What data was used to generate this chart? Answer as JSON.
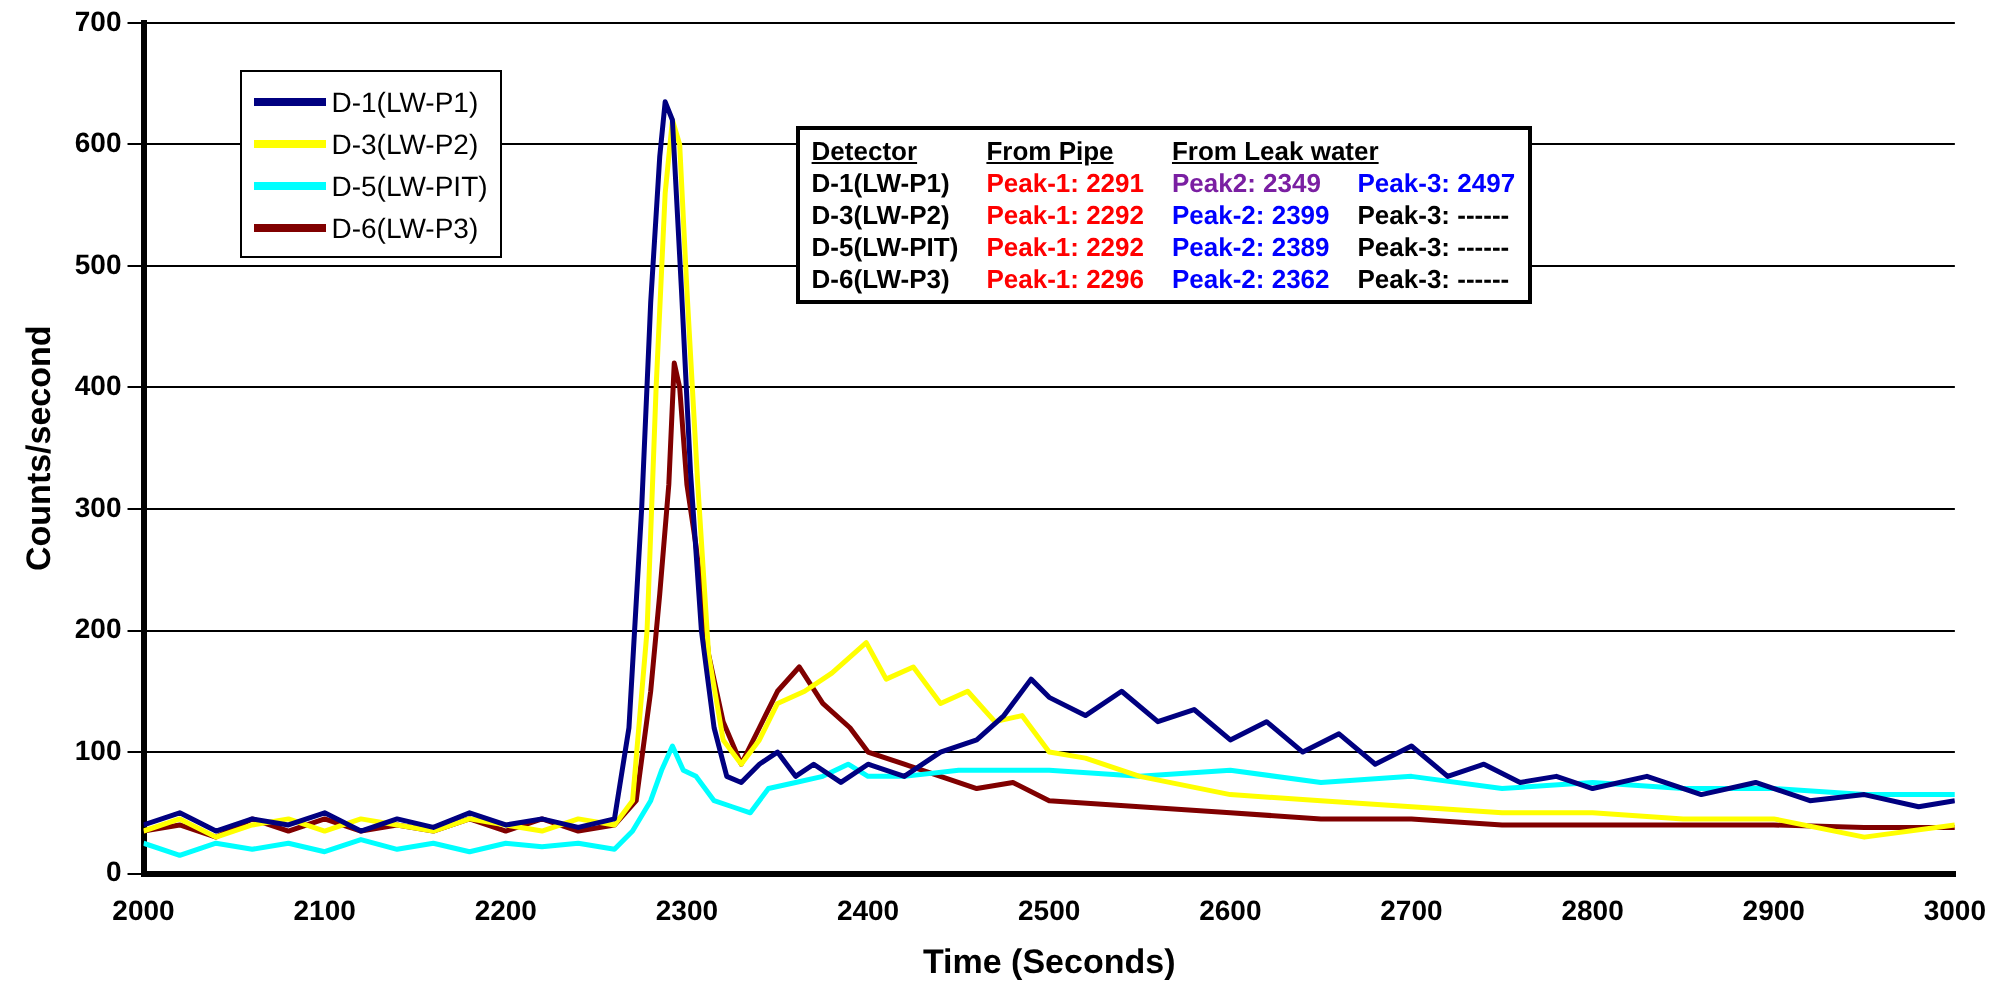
{
  "chart_data": {
    "type": "line",
    "xlabel": "Time (Seconds)",
    "ylabel": "Counts/second",
    "xlim": [
      2000,
      3000
    ],
    "xticks": [
      2000,
      2100,
      2200,
      2300,
      2400,
      2500,
      2600,
      2700,
      2800,
      2900,
      3000
    ],
    "ylim": [
      0,
      700
    ],
    "yticks": [
      0,
      100,
      200,
      300,
      400,
      500,
      600,
      700
    ],
    "grid": "y",
    "legend": "top left",
    "marker": "none",
    "line_style": "solid",
    "annotations": [
      "Detector",
      "From  Pipe",
      "From  Leak  water",
      "D-1(LW-P1)",
      "Peak-1:  2291",
      "Peak2:  2349",
      "Peak-3:  2497",
      "D-3(LW-P2)",
      "Peak-1:  2292",
      "Peak-2: 2399",
      "Peak-3:    ------",
      "D-5(LW-PIT)",
      "Peak-1:  2292",
      "Peak-2: 2389",
      "Peak-3:    ------",
      "D-6(LW-P3)",
      "Peak-1:  2296",
      "Peak-2: 2362",
      "Peak-3:    ------"
    ],
    "series": [
      {
        "name": "D-1(LW-P1)",
        "color": "#000080",
        "x": [
          2000,
          2020,
          2040,
          2060,
          2080,
          2100,
          2120,
          2140,
          2160,
          2180,
          2200,
          2220,
          2240,
          2260,
          2268,
          2275,
          2280,
          2285,
          2288,
          2292,
          2297,
          2302,
          2308,
          2315,
          2322,
          2330,
          2340,
          2350,
          2360,
          2370,
          2385,
          2400,
          2420,
          2440,
          2460,
          2475,
          2490,
          2500,
          2520,
          2540,
          2560,
          2580,
          2600,
          2620,
          2640,
          2660,
          2680,
          2700,
          2720,
          2740,
          2760,
          2780,
          2800,
          2830,
          2860,
          2890,
          2920,
          2950,
          2980,
          3000
        ],
        "values": [
          40,
          50,
          35,
          45,
          40,
          50,
          35,
          45,
          38,
          50,
          40,
          45,
          38,
          45,
          120,
          300,
          470,
          590,
          635,
          620,
          480,
          330,
          200,
          120,
          80,
          75,
          90,
          100,
          80,
          90,
          75,
          90,
          80,
          100,
          110,
          130,
          160,
          145,
          130,
          150,
          125,
          135,
          110,
          125,
          100,
          115,
          90,
          105,
          80,
          90,
          75,
          80,
          70,
          80,
          65,
          75,
          60,
          65,
          55,
          60
        ]
      },
      {
        "name": "D-3(LW-P2)",
        "color": "#ffff00",
        "x": [
          2000,
          2020,
          2040,
          2060,
          2080,
          2100,
          2120,
          2140,
          2160,
          2180,
          2200,
          2220,
          2240,
          2260,
          2270,
          2278,
          2283,
          2288,
          2292,
          2296,
          2300,
          2306,
          2312,
          2320,
          2330,
          2340,
          2350,
          2365,
          2380,
          2399,
          2410,
          2425,
          2440,
          2455,
          2470,
          2485,
          2500,
          2520,
          2550,
          2600,
          2650,
          2700,
          2750,
          2800,
          2850,
          2900,
          2950,
          3000
        ],
        "values": [
          35,
          45,
          30,
          40,
          45,
          35,
          45,
          40,
          35,
          45,
          40,
          35,
          45,
          40,
          60,
          200,
          400,
          560,
          620,
          600,
          480,
          320,
          180,
          110,
          90,
          110,
          140,
          150,
          165,
          190,
          160,
          170,
          140,
          150,
          125,
          130,
          100,
          95,
          80,
          65,
          60,
          55,
          50,
          50,
          45,
          45,
          30,
          40
        ]
      },
      {
        "name": "D-5(LW-PIT)",
        "color": "#00ffff",
        "x": [
          2000,
          2020,
          2040,
          2060,
          2080,
          2100,
          2120,
          2140,
          2160,
          2180,
          2200,
          2220,
          2240,
          2260,
          2270,
          2280,
          2286,
          2292,
          2298,
          2305,
          2315,
          2325,
          2335,
          2345,
          2360,
          2375,
          2389,
          2400,
          2420,
          2450,
          2500,
          2550,
          2600,
          2650,
          2700,
          2750,
          2800,
          2850,
          2900,
          2950,
          3000
        ],
        "values": [
          25,
          15,
          25,
          20,
          25,
          18,
          28,
          20,
          25,
          18,
          25,
          22,
          25,
          20,
          35,
          60,
          85,
          105,
          85,
          80,
          60,
          55,
          50,
          70,
          75,
          80,
          90,
          80,
          80,
          85,
          85,
          80,
          85,
          75,
          80,
          70,
          75,
          70,
          70,
          65,
          65
        ]
      },
      {
        "name": "D-6(LW-P3)",
        "color": "#800000",
        "x": [
          2000,
          2020,
          2040,
          2060,
          2080,
          2100,
          2120,
          2140,
          2160,
          2180,
          2200,
          2220,
          2240,
          2260,
          2272,
          2280,
          2285,
          2290,
          2293,
          2296,
          2300,
          2305,
          2312,
          2320,
          2330,
          2340,
          2350,
          2362,
          2375,
          2390,
          2400,
          2420,
          2440,
          2460,
          2480,
          2500,
          2550,
          2600,
          2650,
          2700,
          2750,
          2800,
          2850,
          2900,
          2950,
          3000
        ],
        "values": [
          35,
          40,
          30,
          45,
          35,
          45,
          35,
          40,
          35,
          45,
          35,
          45,
          35,
          40,
          60,
          150,
          230,
          320,
          420,
          400,
          320,
          270,
          180,
          125,
          90,
          120,
          150,
          170,
          140,
          120,
          100,
          90,
          80,
          70,
          75,
          60,
          55,
          50,
          45,
          45,
          40,
          40,
          40,
          40,
          38,
          38
        ]
      }
    ]
  }
}
